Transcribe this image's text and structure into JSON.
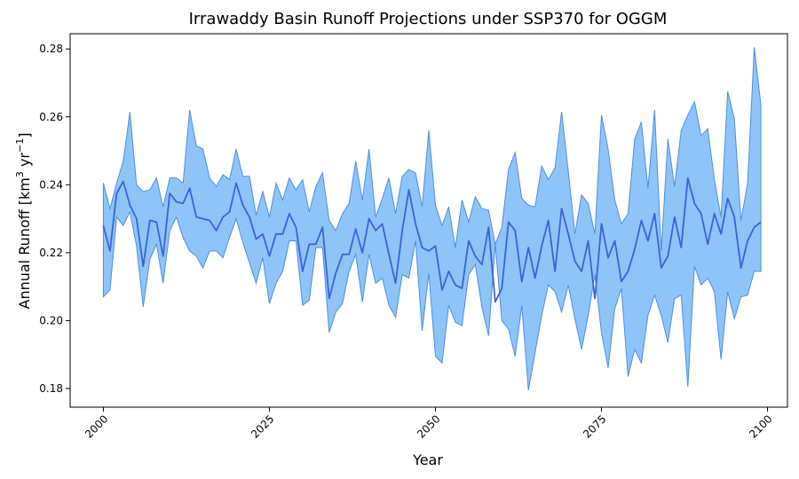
{
  "chart_data": {
    "type": "area",
    "title": "Irrawaddy Basin Runoff Projections under SSP370 for OGGM",
    "xlabel": "Year",
    "ylabel": "Annual Runoff [km",
    "ylabel_unit_exponent": "3",
    "ylabel_mid": " yr",
    "ylabel_unit_exponent2": "−1",
    "ylabel_end": "]",
    "xlim": [
      1995,
      2103
    ],
    "ylim": [
      0.1745,
      0.2845
    ],
    "x_ticks": [
      2000,
      2025,
      2050,
      2075,
      2100
    ],
    "x_tick_labels": [
      "2000",
      "2025",
      "2050",
      "2075",
      "2100"
    ],
    "y_ticks": [
      0.18,
      0.2,
      0.22,
      0.24,
      0.26,
      0.28
    ],
    "y_tick_labels": [
      "0.18",
      "0.20",
      "0.22",
      "0.24",
      "0.26",
      "0.28"
    ],
    "grid": false,
    "legend": "none",
    "colors": {
      "band_fill": "#8fc4f8",
      "band_edge": "#4a8fe0",
      "median_line": "#3a63d8"
    },
    "series": [
      {
        "x": [
          2000,
          2001,
          2002,
          2003,
          2004,
          2005,
          2006,
          2007,
          2008,
          2009,
          2010,
          2011,
          2012,
          2013,
          2014,
          2015,
          2016,
          2017,
          2018,
          2019,
          2020,
          2021,
          2022,
          2023,
          2024,
          2025,
          2026,
          2027,
          2028,
          2029,
          2030,
          2031,
          2032,
          2033,
          2034,
          2035,
          2036,
          2037,
          2038,
          2039,
          2040,
          2041,
          2042,
          2043,
          2044,
          2045,
          2046,
          2047,
          2048,
          2049,
          2050,
          2051,
          2052,
          2053,
          2054,
          2055,
          2056,
          2057,
          2058,
          2059,
          2060,
          2061,
          2062,
          2063,
          2064,
          2065,
          2066,
          2067,
          2068,
          2069,
          2070,
          2071,
          2072,
          2073,
          2074,
          2075,
          2076,
          2077,
          2078,
          2079,
          2080,
          2081,
          2082,
          2083,
          2084,
          2085,
          2086,
          2087,
          2088,
          2089,
          2090,
          2091,
          2092,
          2093,
          2094,
          2095,
          2096,
          2097,
          2098,
          2099
        ],
        "median": [
          0.228,
          0.2205,
          0.2375,
          0.241,
          0.234,
          0.23,
          0.216,
          0.2295,
          0.229,
          0.219,
          0.2375,
          0.235,
          0.2345,
          0.239,
          0.2305,
          0.23,
          0.2295,
          0.2265,
          0.2305,
          0.232,
          0.2405,
          0.234,
          0.2305,
          0.224,
          0.2255,
          0.219,
          0.2255,
          0.2255,
          0.2315,
          0.2275,
          0.2145,
          0.2225,
          0.2225,
          0.2275,
          0.2065,
          0.214,
          0.2195,
          0.2195,
          0.227,
          0.22,
          0.23,
          0.2265,
          0.2285,
          0.2195,
          0.211,
          0.2265,
          0.2385,
          0.2285,
          0.2215,
          0.2205,
          0.222,
          0.209,
          0.2145,
          0.2105,
          0.2095,
          0.2235,
          0.219,
          0.2165,
          0.2275,
          0.2055,
          0.2095,
          0.229,
          0.2265,
          0.2115,
          0.2215,
          0.2125,
          0.222,
          0.2295,
          0.2145,
          0.233,
          0.2255,
          0.2175,
          0.2145,
          0.2235,
          0.2065,
          0.2285,
          0.2185,
          0.2235,
          0.2115,
          0.2145,
          0.221,
          0.2295,
          0.2235,
          0.2315,
          0.2155,
          0.219,
          0.2305,
          0.2215,
          0.242,
          0.2345,
          0.2315,
          0.2225,
          0.2315,
          0.2255,
          0.236,
          0.2305,
          0.2155,
          0.2235,
          0.2275,
          0.229
        ],
        "upper": [
          0.2405,
          0.233,
          0.2405,
          0.247,
          0.2615,
          0.24,
          0.238,
          0.2385,
          0.242,
          0.2335,
          0.242,
          0.242,
          0.2405,
          0.262,
          0.2515,
          0.2505,
          0.242,
          0.2395,
          0.243,
          0.2415,
          0.2505,
          0.2425,
          0.2425,
          0.231,
          0.238,
          0.2305,
          0.2405,
          0.2355,
          0.242,
          0.2385,
          0.2415,
          0.232,
          0.2395,
          0.2435,
          0.2295,
          0.2265,
          0.2315,
          0.2345,
          0.247,
          0.2355,
          0.2505,
          0.2305,
          0.236,
          0.242,
          0.2315,
          0.2425,
          0.2445,
          0.2435,
          0.2335,
          0.256,
          0.234,
          0.228,
          0.2335,
          0.2215,
          0.2355,
          0.229,
          0.2365,
          0.233,
          0.2325,
          0.2225,
          0.2275,
          0.2445,
          0.2495,
          0.236,
          0.234,
          0.2335,
          0.2455,
          0.2415,
          0.245,
          0.2615,
          0.244,
          0.2255,
          0.237,
          0.2345,
          0.2255,
          0.2605,
          0.2505,
          0.2355,
          0.2285,
          0.2315,
          0.2535,
          0.2585,
          0.239,
          0.262,
          0.2205,
          0.2535,
          0.2395,
          0.256,
          0.2605,
          0.2645,
          0.2545,
          0.2565,
          0.2415,
          0.2305,
          0.2675,
          0.2595,
          0.2295,
          0.2405,
          0.2805,
          0.2635
        ],
        "lower": [
          0.207,
          0.209,
          0.2305,
          0.228,
          0.232,
          0.222,
          0.204,
          0.218,
          0.2225,
          0.211,
          0.2265,
          0.2305,
          0.2245,
          0.2205,
          0.219,
          0.2155,
          0.2205,
          0.2205,
          0.2185,
          0.2245,
          0.23,
          0.223,
          0.217,
          0.211,
          0.2185,
          0.205,
          0.211,
          0.2145,
          0.2235,
          0.2235,
          0.2045,
          0.206,
          0.2215,
          0.2215,
          0.1965,
          0.2025,
          0.205,
          0.2145,
          0.2195,
          0.2055,
          0.2195,
          0.211,
          0.2125,
          0.2045,
          0.201,
          0.2135,
          0.2125,
          0.2235,
          0.197,
          0.214,
          0.1895,
          0.1875,
          0.2045,
          0.1995,
          0.1985,
          0.2135,
          0.2165,
          0.204,
          0.1955,
          0.2225,
          0.2,
          0.1975,
          0.1895,
          0.2045,
          0.1795,
          0.1905,
          0.2015,
          0.2105,
          0.2085,
          0.2025,
          0.2105,
          0.2005,
          0.1915,
          0.2015,
          0.2135,
          0.1965,
          0.186,
          0.2035,
          0.2095,
          0.1835,
          0.1915,
          0.1875,
          0.2015,
          0.2075,
          0.2015,
          0.1935,
          0.2065,
          0.2075,
          0.1805,
          0.216,
          0.2105,
          0.2125,
          0.2085,
          0.1885,
          0.2085,
          0.2005,
          0.207,
          0.2075,
          0.2145,
          0.2145
        ]
      }
    ]
  }
}
